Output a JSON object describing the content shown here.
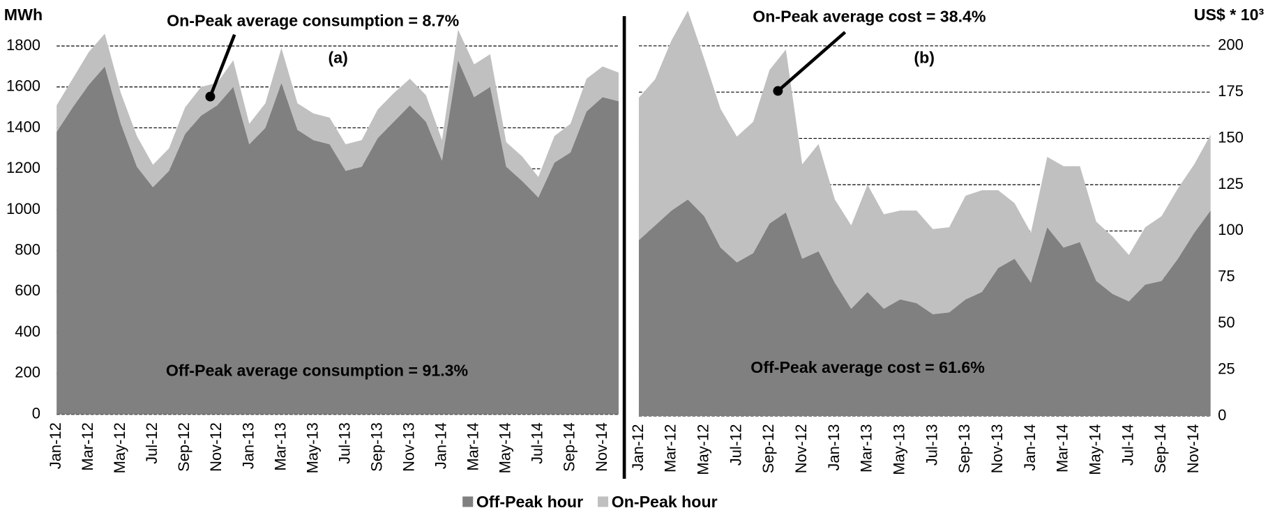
{
  "chart_data": [
    {
      "type": "area",
      "stacked": true,
      "y_label": "MWh",
      "panel_label": "(a)",
      "annotations": [
        "On-Peak average consumption = 8.7%",
        "Off-Peak average consumption = 91.3%"
      ],
      "categories": [
        "Jan-12",
        null,
        "Mar-12",
        null,
        "May-12",
        null,
        "Jul-12",
        null,
        "Sep-12",
        null,
        "Nov-12",
        null,
        "Jan-13",
        null,
        "Mar-13",
        null,
        "May-13",
        null,
        "Jul-13",
        null,
        "Sep-13",
        null,
        "Nov-13",
        null,
        "Jan-14",
        null,
        "Mar-14",
        null,
        "May-14",
        null,
        "Jul-14",
        null,
        "Sep-14",
        null,
        "Nov-14",
        null
      ],
      "series": [
        {
          "name": "Off-Peak hour",
          "color": "#808080",
          "values": [
            1380,
            1500,
            1610,
            1700,
            1420,
            1210,
            1110,
            1190,
            1370,
            1460,
            1510,
            1600,
            1320,
            1400,
            1620,
            1390,
            1340,
            1320,
            1190,
            1210,
            1350,
            1430,
            1510,
            1430,
            1240,
            1730,
            1550,
            1600,
            1210,
            1140,
            1060,
            1230,
            1280,
            1480,
            1550,
            1530
          ]
        },
        {
          "name": "On-Peak hour",
          "color": "#c0c0c0",
          "values": [
            130,
            140,
            160,
            160,
            150,
            150,
            110,
            110,
            130,
            140,
            110,
            130,
            100,
            120,
            170,
            130,
            130,
            130,
            130,
            130,
            140,
            140,
            130,
            130,
            100,
            150,
            160,
            160,
            120,
            120,
            100,
            130,
            140,
            160,
            150,
            140
          ]
        }
      ],
      "ylim": [
        0,
        1950
      ],
      "yticks": [
        0,
        200,
        400,
        600,
        800,
        1000,
        1200,
        1400,
        1600,
        1800
      ],
      "grid": true
    },
    {
      "type": "area",
      "stacked": true,
      "y_label": "US$ * 10³",
      "panel_label": "(b)",
      "annotations": [
        "On-Peak average cost = 38.4%",
        "Off-Peak average cost = 61.6%"
      ],
      "categories": [
        "Jan-12",
        null,
        "Mar-12",
        null,
        "May-12",
        null,
        "Jul-12",
        null,
        "Sep-12",
        null,
        "Nov-12",
        null,
        "Jan-13",
        null,
        "Mar-13",
        null,
        "May-13",
        null,
        "Jul-13",
        null,
        "Sep-13",
        null,
        "Nov-13",
        null,
        "Jan-14",
        null,
        "Mar-14",
        null,
        "May-14",
        null,
        "Jul-14",
        null,
        "Sep-14",
        null,
        "Nov-14",
        null
      ],
      "series": [
        {
          "color": "#808080",
          "axis": "y2",
          "values": [
            95,
            103,
            111,
            117,
            108,
            91,
            83,
            88,
            104,
            110,
            85,
            89,
            72,
            58,
            67,
            58,
            63,
            61,
            55,
            56,
            63,
            67,
            80,
            85,
            72,
            102,
            91,
            94,
            73,
            66,
            62,
            71,
            73,
            85,
            99,
            111
          ]
        },
        {
          "color": "#c0c0c0",
          "axis": "y2",
          "values": [
            77,
            79,
            92,
            102,
            85,
            75,
            68,
            71,
            83,
            88,
            51,
            58,
            45,
            45,
            58,
            51,
            48,
            50,
            46,
            46,
            56,
            55,
            42,
            30,
            27,
            38,
            44,
            41,
            32,
            31,
            25,
            31,
            35,
            38,
            37,
            41
          ]
        }
      ],
      "y2lim": [
        0,
        220
      ],
      "y2ticks": [
        0,
        25,
        50,
        75,
        100,
        125,
        150,
        175,
        200
      ],
      "grid": true
    }
  ]
}
